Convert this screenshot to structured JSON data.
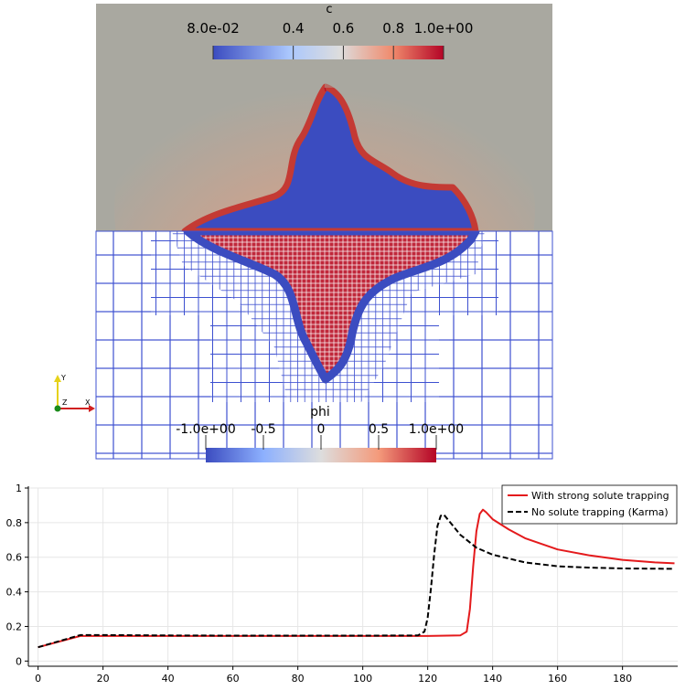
{
  "visualization": {
    "top_colorbar": {
      "title": "c",
      "tick_labels": [
        "8.0e-02",
        "0.4",
        "0.6",
        "0.8",
        "1.0e+00"
      ],
      "tick_values": [
        0.08,
        0.4,
        0.6,
        0.8,
        1.0
      ],
      "range": [
        0.08,
        1.0
      ],
      "colormap": [
        "#3b4cc0",
        "#dddddd",
        "#b40426"
      ]
    },
    "bottom_colorbar": {
      "title": "phi",
      "tick_labels": [
        "-1.0e+00",
        "-0.5",
        "0",
        "0.5",
        "1.0e+00"
      ],
      "tick_values": [
        -1.0,
        -0.5,
        0,
        0.5,
        1.0
      ],
      "range": [
        -1.0,
        1.0
      ],
      "colormap": [
        "#3b4cc0",
        "#dddddd",
        "#b40426"
      ]
    },
    "axes_triad": {
      "labels": [
        "Y",
        "Z",
        "X"
      ]
    },
    "colors": {
      "background_field": "#a9a8a0",
      "solid": "#3b4cc0",
      "interface": "#b40426",
      "mesh": "#3d50d0"
    }
  },
  "chart_data": {
    "type": "line",
    "title": "",
    "xlabel": "",
    "ylabel": "",
    "xlim": [
      -3,
      197
    ],
    "ylim": [
      -0.03,
      1.0
    ],
    "x_ticks": [
      0,
      20,
      40,
      60,
      80,
      100,
      120,
      140,
      160,
      180
    ],
    "x_tick_labels": [
      "0",
      "20",
      "40",
      "60",
      "80",
      "100",
      "120",
      "140",
      "160",
      "180"
    ],
    "y_ticks": [
      0,
      0.2,
      0.4,
      0.6,
      0.8,
      1
    ],
    "y_tick_labels": [
      "0",
      "0.2",
      "0.4",
      "0.6",
      "0.8",
      "1"
    ],
    "grid": true,
    "legend_position": "top-right",
    "series": [
      {
        "name": "With strong solute trapping",
        "color": "#e41a1c",
        "dash": "solid",
        "x": [
          0,
          13,
          20,
          40,
          60,
          80,
          100,
          120,
          130,
          132,
          133,
          134,
          135,
          136,
          137,
          138,
          140,
          145,
          150,
          160,
          170,
          180,
          190,
          196
        ],
        "y": [
          0.08,
          0.145,
          0.145,
          0.145,
          0.145,
          0.145,
          0.145,
          0.145,
          0.148,
          0.17,
          0.3,
          0.55,
          0.75,
          0.85,
          0.875,
          0.86,
          0.82,
          0.76,
          0.71,
          0.645,
          0.61,
          0.585,
          0.57,
          0.565
        ]
      },
      {
        "name": "No solute trapping (Karma)",
        "color": "#000000",
        "dash": "dashed",
        "x": [
          0,
          13,
          20,
          40,
          60,
          80,
          100,
          117,
          119,
          120,
          121,
          122,
          123,
          124,
          125,
          127,
          130,
          135,
          140,
          150,
          160,
          170,
          180,
          196
        ],
        "y": [
          0.08,
          0.15,
          0.15,
          0.148,
          0.147,
          0.147,
          0.147,
          0.148,
          0.17,
          0.25,
          0.42,
          0.62,
          0.78,
          0.84,
          0.845,
          0.8,
          0.73,
          0.655,
          0.615,
          0.57,
          0.548,
          0.54,
          0.535,
          0.533
        ]
      }
    ]
  }
}
